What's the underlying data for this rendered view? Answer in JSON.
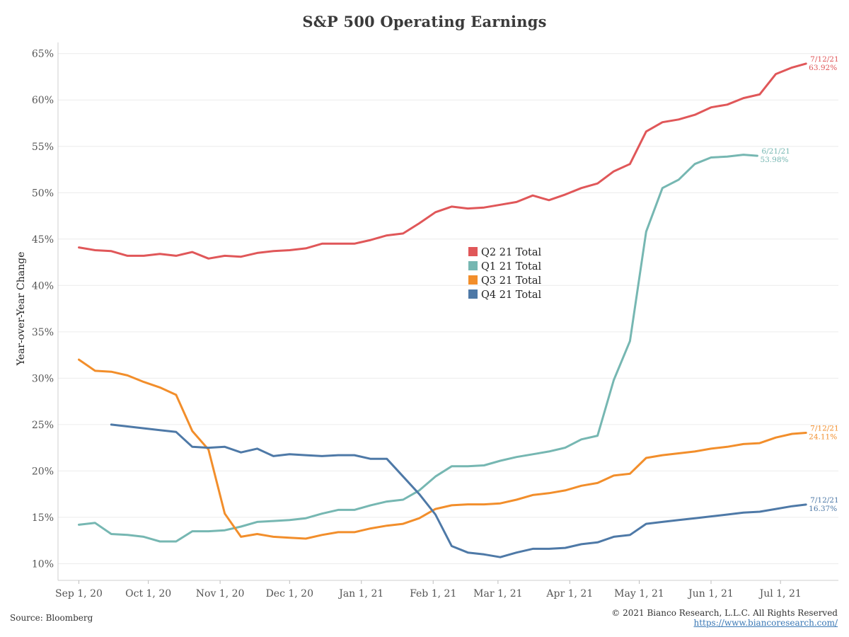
{
  "footer": {
    "source": "Source: Bloomberg",
    "copyright": "© 2021 Bianco Research, L.L.C. All Rights Reserved",
    "url": "https://www.biancoresearch.com/"
  },
  "chart_data": {
    "type": "line",
    "title": "S&P 500 Operating Earnings",
    "ylabel": "Year-over-Year Change",
    "xlabel": "",
    "ylim": [
      8.2,
      66.2
    ],
    "xlim": [
      "2020-08-23",
      "2021-07-26"
    ],
    "grid": "horizontal",
    "legend": "center",
    "y_ticks": [
      10,
      15,
      20,
      25,
      30,
      35,
      40,
      45,
      50,
      55,
      60,
      65
    ],
    "y_tick_labels": [
      "10%",
      "15%",
      "20%",
      "25%",
      "30%",
      "35%",
      "40%",
      "45%",
      "50%",
      "55%",
      "60%",
      "65%"
    ],
    "x_ticks": [
      "2020-09-01",
      "2020-10-01",
      "2020-11-01",
      "2020-12-01",
      "2021-01-01",
      "2021-02-01",
      "2021-03-01",
      "2021-04-01",
      "2021-05-01",
      "2021-06-01",
      "2021-07-01"
    ],
    "x_tick_labels": [
      "Sep 1, 20",
      "Oct 1, 20",
      "Nov 1, 20",
      "Dec 1, 20",
      "Jan 1, 21",
      "Feb 1, 21",
      "Mar 1, 21",
      "Apr 1, 21",
      "May 1, 21",
      "Jun 1, 21",
      "Jul 1, 21"
    ],
    "series": [
      {
        "name": "Q2 21 Total",
        "color": "#e05759",
        "x": [
          "2020-09-01",
          "2020-09-08",
          "2020-09-15",
          "2020-09-22",
          "2020-09-29",
          "2020-10-06",
          "2020-10-13",
          "2020-10-20",
          "2020-10-27",
          "2020-11-03",
          "2020-11-10",
          "2020-11-17",
          "2020-11-24",
          "2020-12-01",
          "2020-12-08",
          "2020-12-15",
          "2020-12-22",
          "2020-12-29",
          "2021-01-05",
          "2021-01-12",
          "2021-01-19",
          "2021-01-26",
          "2021-02-02",
          "2021-02-09",
          "2021-02-16",
          "2021-02-23",
          "2021-03-02",
          "2021-03-09",
          "2021-03-16",
          "2021-03-23",
          "2021-03-30",
          "2021-04-06",
          "2021-04-13",
          "2021-04-20",
          "2021-04-27",
          "2021-05-04",
          "2021-05-11",
          "2021-05-18",
          "2021-05-25",
          "2021-06-01",
          "2021-06-08",
          "2021-06-15",
          "2021-06-22",
          "2021-06-29",
          "2021-07-06",
          "2021-07-12"
        ],
        "values": [
          44.1,
          43.8,
          43.7,
          43.2,
          43.2,
          43.4,
          43.2,
          43.6,
          42.9,
          43.2,
          43.1,
          43.5,
          43.7,
          43.8,
          44.0,
          44.5,
          44.5,
          44.5,
          44.9,
          45.4,
          45.6,
          46.7,
          47.9,
          48.5,
          48.3,
          48.4,
          48.7,
          49.0,
          49.7,
          49.2,
          49.8,
          50.5,
          51.0,
          52.3,
          53.1,
          56.6,
          57.6,
          57.9,
          58.4,
          59.2,
          59.5,
          60.2,
          60.6,
          62.8,
          63.5,
          63.92
        ],
        "end_label": {
          "date": "7/12/21",
          "value": "63.92%"
        }
      },
      {
        "name": "Q1 21 Total",
        "color": "#76b7b2",
        "x": [
          "2020-09-01",
          "2020-09-08",
          "2020-09-15",
          "2020-09-22",
          "2020-09-29",
          "2020-10-06",
          "2020-10-13",
          "2020-10-20",
          "2020-10-27",
          "2020-11-03",
          "2020-11-10",
          "2020-11-17",
          "2020-11-24",
          "2020-12-01",
          "2020-12-08",
          "2020-12-15",
          "2020-12-22",
          "2020-12-29",
          "2021-01-05",
          "2021-01-12",
          "2021-01-19",
          "2021-01-26",
          "2021-02-02",
          "2021-02-09",
          "2021-02-16",
          "2021-02-23",
          "2021-03-02",
          "2021-03-09",
          "2021-03-16",
          "2021-03-23",
          "2021-03-30",
          "2021-04-06",
          "2021-04-13",
          "2021-04-20",
          "2021-04-27",
          "2021-05-04",
          "2021-05-11",
          "2021-05-18",
          "2021-05-25",
          "2021-06-01",
          "2021-06-08",
          "2021-06-15",
          "2021-06-21"
        ],
        "values": [
          14.2,
          14.4,
          13.2,
          13.1,
          12.9,
          12.4,
          12.4,
          13.5,
          13.5,
          13.6,
          14.0,
          14.5,
          14.6,
          14.7,
          14.9,
          15.4,
          15.8,
          15.8,
          16.3,
          16.7,
          16.9,
          17.9,
          19.4,
          20.5,
          20.5,
          20.6,
          21.1,
          21.5,
          21.8,
          22.1,
          22.5,
          23.4,
          23.8,
          29.8,
          34.0,
          45.8,
          50.5,
          51.4,
          53.1,
          53.8,
          53.9,
          54.1,
          53.98
        ],
        "end_label": {
          "date": "6/21/21",
          "value": "53.98%"
        }
      },
      {
        "name": "Q3 21 Total",
        "color": "#f28e2b",
        "x": [
          "2020-09-01",
          "2020-09-08",
          "2020-09-15",
          "2020-09-22",
          "2020-09-29",
          "2020-10-06",
          "2020-10-13",
          "2020-10-20",
          "2020-10-27",
          "2020-11-03",
          "2020-11-10",
          "2020-11-17",
          "2020-11-24",
          "2020-12-01",
          "2020-12-08",
          "2020-12-15",
          "2020-12-22",
          "2020-12-29",
          "2021-01-05",
          "2021-01-12",
          "2021-01-19",
          "2021-01-26",
          "2021-02-02",
          "2021-02-09",
          "2021-02-16",
          "2021-02-23",
          "2021-03-02",
          "2021-03-09",
          "2021-03-16",
          "2021-03-23",
          "2021-03-30",
          "2021-04-06",
          "2021-04-13",
          "2021-04-20",
          "2021-04-27",
          "2021-05-04",
          "2021-05-11",
          "2021-05-18",
          "2021-05-25",
          "2021-06-01",
          "2021-06-08",
          "2021-06-15",
          "2021-06-22",
          "2021-06-29",
          "2021-07-06",
          "2021-07-12"
        ],
        "values": [
          32.0,
          30.8,
          30.7,
          30.3,
          29.6,
          29.0,
          28.2,
          24.3,
          22.3,
          15.4,
          12.9,
          13.2,
          12.9,
          12.8,
          12.7,
          13.1,
          13.4,
          13.4,
          13.8,
          14.1,
          14.3,
          14.9,
          15.9,
          16.3,
          16.4,
          16.4,
          16.5,
          16.9,
          17.4,
          17.6,
          17.9,
          18.4,
          18.7,
          19.5,
          19.7,
          21.4,
          21.7,
          21.9,
          22.1,
          22.4,
          22.6,
          22.9,
          23.0,
          23.6,
          24.0,
          24.11
        ],
        "end_label": {
          "date": "7/12/21",
          "value": "24.11%"
        }
      },
      {
        "name": "Q4 21 Total",
        "color": "#4e79a7",
        "x": [
          "2020-09-15",
          "2020-09-22",
          "2020-09-29",
          "2020-10-06",
          "2020-10-13",
          "2020-10-20",
          "2020-10-27",
          "2020-11-03",
          "2020-11-10",
          "2020-11-17",
          "2020-11-24",
          "2020-12-01",
          "2020-12-08",
          "2020-12-15",
          "2020-12-22",
          "2020-12-29",
          "2021-01-05",
          "2021-01-12",
          "2021-01-19",
          "2021-01-26",
          "2021-02-02",
          "2021-02-09",
          "2021-02-16",
          "2021-02-23",
          "2021-03-02",
          "2021-03-09",
          "2021-03-16",
          "2021-03-23",
          "2021-03-30",
          "2021-04-06",
          "2021-04-13",
          "2021-04-20",
          "2021-04-27",
          "2021-05-04",
          "2021-05-11",
          "2021-05-18",
          "2021-05-25",
          "2021-06-01",
          "2021-06-08",
          "2021-06-15",
          "2021-06-22",
          "2021-06-29",
          "2021-07-06",
          "2021-07-12"
        ],
        "values": [
          25.0,
          24.8,
          24.6,
          24.4,
          24.2,
          22.6,
          22.5,
          22.6,
          22.0,
          22.4,
          21.6,
          21.8,
          21.7,
          21.6,
          21.7,
          21.7,
          21.3,
          21.3,
          19.4,
          17.5,
          15.3,
          11.9,
          11.2,
          11.0,
          10.7,
          11.2,
          11.6,
          11.6,
          11.7,
          12.1,
          12.3,
          12.9,
          13.1,
          14.3,
          14.5,
          14.7,
          14.9,
          15.1,
          15.3,
          15.5,
          15.6,
          15.9,
          16.2,
          16.37
        ],
        "end_label": {
          "date": "7/12/21",
          "value": "16.37%"
        }
      }
    ]
  }
}
